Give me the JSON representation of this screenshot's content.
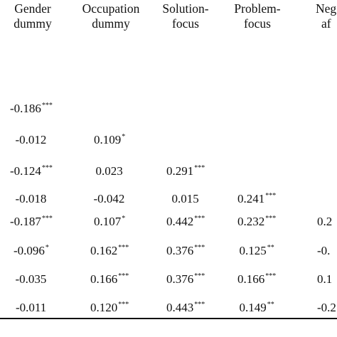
{
  "headers": [
    {
      "line1": "Gender",
      "line2": "dummy"
    },
    {
      "line1": "Occupation",
      "line2": "dummy"
    },
    {
      "line1": "Solution-",
      "line2": "focus"
    },
    {
      "line1": "Problem-",
      "line2": "focus"
    },
    {
      "line1": "Neg",
      "line2": "af"
    }
  ],
  "rows": [
    [
      {
        "v": "-0.186",
        "s": "***"
      }
    ],
    [
      {
        "v": "-0.012",
        "s": ""
      },
      {
        "v": "0.109",
        "s": "*"
      }
    ],
    [
      {
        "v": "-0.124",
        "s": "***"
      },
      {
        "v": "0.023",
        "s": ""
      },
      {
        "v": "0.291",
        "s": "***"
      }
    ],
    [
      {
        "v": "-0.018",
        "s": ""
      },
      {
        "v": "-0.042",
        "s": ""
      },
      {
        "v": "0.015",
        "s": ""
      },
      {
        "v": "0.241",
        "s": "***"
      }
    ],
    [
      {
        "v": "-0.187",
        "s": "***"
      },
      {
        "v": "0.107",
        "s": "*"
      },
      {
        "v": "0.442",
        "s": "***"
      },
      {
        "v": "0.232",
        "s": "***"
      },
      {
        "v": "0.2",
        "s": ""
      }
    ],
    [
      {
        "v": "-0.096",
        "s": "*"
      },
      {
        "v": "0.162",
        "s": "***"
      },
      {
        "v": "0.376",
        "s": "***"
      },
      {
        "v": "0.125",
        "s": "**"
      },
      {
        "v": "-0.",
        "s": ""
      }
    ],
    [
      {
        "v": "-0.035",
        "s": ""
      },
      {
        "v": "0.166",
        "s": "***"
      },
      {
        "v": "0.376",
        "s": "***"
      },
      {
        "v": "0.166",
        "s": "***"
      },
      {
        "v": "0.1",
        "s": ""
      }
    ],
    [
      {
        "v": "-0.011",
        "s": ""
      },
      {
        "v": "0.120",
        "s": "***"
      },
      {
        "v": "0.443",
        "s": "***"
      },
      {
        "v": "0.149",
        "s": "**"
      },
      {
        "v": "-0.2",
        "s": ""
      }
    ]
  ]
}
